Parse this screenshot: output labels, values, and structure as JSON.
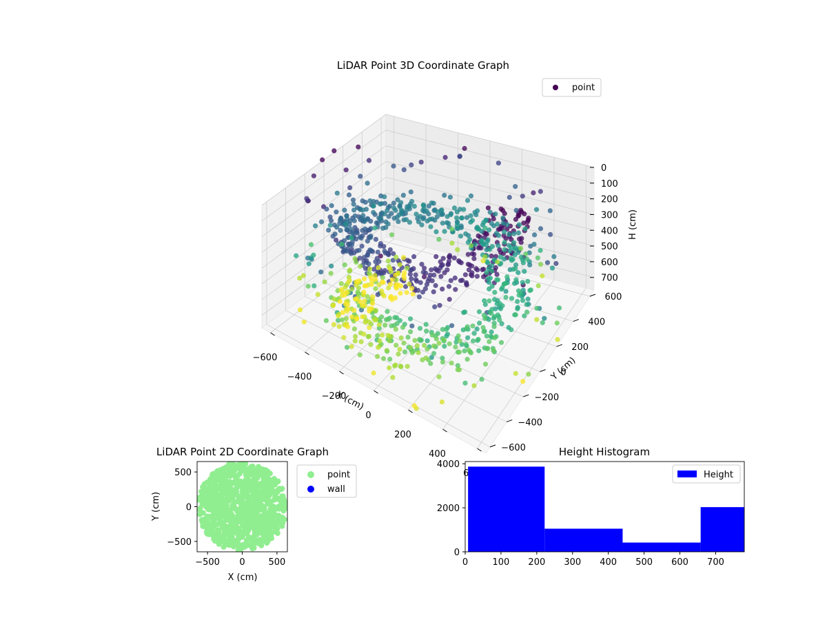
{
  "chart_data": [
    {
      "type": "scatter",
      "projection": "3d",
      "title": "LiDAR Point 3D Coordinate Graph",
      "xlabel": "X (cm)",
      "ylabel": "Y (cm)",
      "zlabel": "H (cm)",
      "x_ticks": [
        -600,
        -400,
        -200,
        0,
        200,
        400,
        600
      ],
      "y_ticks": [
        -600,
        -400,
        -200,
        0,
        200,
        400,
        600
      ],
      "z_ticks": [
        0,
        100,
        200,
        300,
        400,
        500,
        600,
        700
      ],
      "xlim": [
        -650,
        650
      ],
      "ylim": [
        -650,
        650
      ],
      "zlim": [
        0,
        780
      ],
      "z_inverted": true,
      "colormap": "viridis",
      "legend": {
        "entries": [
          "point"
        ],
        "placement": "top-right"
      },
      "series": [
        {
          "name": "point",
          "color": "#440154",
          "structure": "helical ramp of points spiraling downward, radius ~250-600 cm, height 0-780 cm"
        }
      ],
      "grid": true
    },
    {
      "type": "scatter",
      "title": "LiDAR Point 2D Coordinate Graph",
      "xlabel": "X (cm)",
      "ylabel": "Y (cm)",
      "x_ticks": [
        -500,
        0,
        500
      ],
      "y_ticks": [
        -500,
        0,
        500
      ],
      "xlim": [
        -650,
        650
      ],
      "ylim": [
        -650,
        650
      ],
      "legend": {
        "entries": [
          "point",
          "wall"
        ],
        "placement": "outside-right"
      },
      "series": [
        {
          "name": "point",
          "color": "#90ee90",
          "shape": "filled disk of radius ~620 cm"
        },
        {
          "name": "wall",
          "color": "#0000ff",
          "points": []
        }
      ],
      "grid": false
    },
    {
      "type": "bar",
      "subtype": "histogram",
      "title": "Height Histogram",
      "x_ticks": [
        0,
        100,
        200,
        300,
        400,
        500,
        600,
        700
      ],
      "y_ticks": [
        0,
        2000,
        4000
      ],
      "xlim": [
        0,
        780
      ],
      "ylim": [
        0,
        4100
      ],
      "bins": [
        {
          "x0": 8,
          "x1": 222,
          "count": 3870
        },
        {
          "x0": 222,
          "x1": 440,
          "count": 1050
        },
        {
          "x0": 440,
          "x1": 658,
          "count": 420
        },
        {
          "x0": 658,
          "x1": 780,
          "count": 2030
        }
      ],
      "legend": {
        "entries": [
          "Height"
        ],
        "placement": "top-right"
      },
      "series": [
        {
          "name": "Height",
          "color": "#0000ff"
        }
      ],
      "grid": false
    }
  ]
}
